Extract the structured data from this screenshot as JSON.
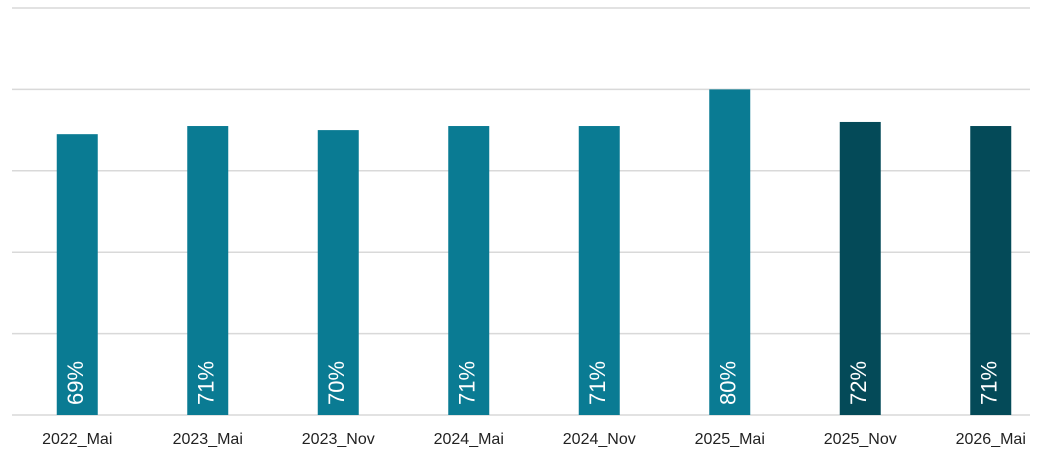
{
  "chart_data": {
    "type": "bar",
    "categories": [
      "2022_Mai",
      "2023_Mai",
      "2023_Nov",
      "2024_Mai",
      "2024_Nov",
      "2025_Mai",
      "2025_Nov",
      "2026_Mai"
    ],
    "values": [
      69,
      71,
      70,
      71,
      71,
      80,
      72,
      71
    ],
    "value_labels": [
      "69%",
      "71%",
      "70%",
      "71%",
      "71%",
      "80%",
      "72%",
      "71%"
    ],
    "colors": [
      "#0a7b93",
      "#0a7b93",
      "#0a7b93",
      "#0a7b93",
      "#0a7b93",
      "#0a7b93",
      "#044a58",
      "#044a58"
    ],
    "ylim": [
      0,
      100
    ],
    "yticks": [
      0,
      20,
      40,
      60,
      80,
      100
    ],
    "grid": true
  }
}
